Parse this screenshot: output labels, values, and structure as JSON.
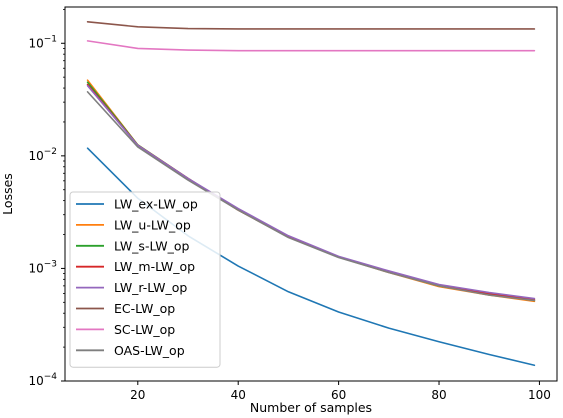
{
  "chart_data": {
    "type": "line",
    "title": "",
    "xlabel": "Number of samples",
    "ylabel": "Losses",
    "x_scale": "linear",
    "y_scale": "log",
    "xlim": [
      5.5,
      103.5
    ],
    "ylim": [
      0.0001,
      0.21
    ],
    "x_ticks": [
      20,
      40,
      60,
      80,
      100
    ],
    "x_tick_labels": [
      "20",
      "40",
      "60",
      "80",
      "100"
    ],
    "y_ticks": [
      0.0001,
      0.001,
      0.01,
      0.1
    ],
    "y_tick_labels": [
      {
        "base": "10",
        "exp": "−4"
      },
      {
        "base": "10",
        "exp": "−3"
      },
      {
        "base": "10",
        "exp": "−2"
      },
      {
        "base": "10",
        "exp": "−1"
      }
    ],
    "grid": false,
    "legend_position": "lower-left",
    "x": [
      10,
      20,
      30,
      40,
      50,
      60,
      70,
      80,
      90,
      99
    ],
    "series": [
      {
        "name": "LW_ex-LW_op",
        "color": "#1f77b4",
        "values": [
          0.0117,
          0.0042,
          0.00195,
          0.00105,
          0.00062,
          0.00041,
          0.000295,
          0.000223,
          0.000172,
          0.000138
        ]
      },
      {
        "name": "LW_u-LW_op",
        "color": "#ff7f0e",
        "values": [
          0.047,
          0.0125,
          0.0063,
          0.0033,
          0.0019,
          0.00126,
          0.00092,
          0.00069,
          0.00058,
          0.00051
        ]
      },
      {
        "name": "LW_s-LW_op",
        "color": "#2ca02c",
        "values": [
          0.045,
          0.0125,
          0.0063,
          0.0033,
          0.0019,
          0.00126,
          0.00093,
          0.0007,
          0.00059,
          0.00052
        ]
      },
      {
        "name": "LW_m-LW_op",
        "color": "#d62728",
        "values": [
          0.043,
          0.0124,
          0.0063,
          0.0033,
          0.0019,
          0.00127,
          0.00094,
          0.00071,
          0.0006,
          0.00053
        ]
      },
      {
        "name": "LW_r-LW_op",
        "color": "#9467bd",
        "values": [
          0.042,
          0.0124,
          0.0063,
          0.0034,
          0.00195,
          0.00128,
          0.00095,
          0.00072,
          0.00061,
          0.00054
        ]
      },
      {
        "name": "EC-LW_op",
        "color": "#8c564b",
        "values": [
          0.155,
          0.14,
          0.135,
          0.134,
          0.134,
          0.134,
          0.134,
          0.134,
          0.134,
          0.134
        ]
      },
      {
        "name": "SC-LW_op",
        "color": "#e377c2",
        "values": [
          0.105,
          0.09,
          0.087,
          0.086,
          0.086,
          0.086,
          0.086,
          0.086,
          0.086,
          0.086
        ]
      },
      {
        "name": "OAS-LW_op",
        "color": "#7f7f7f",
        "values": [
          0.037,
          0.012,
          0.0061,
          0.0033,
          0.00188,
          0.00125,
          0.00092,
          0.0007,
          0.00058,
          0.00052
        ]
      }
    ]
  }
}
